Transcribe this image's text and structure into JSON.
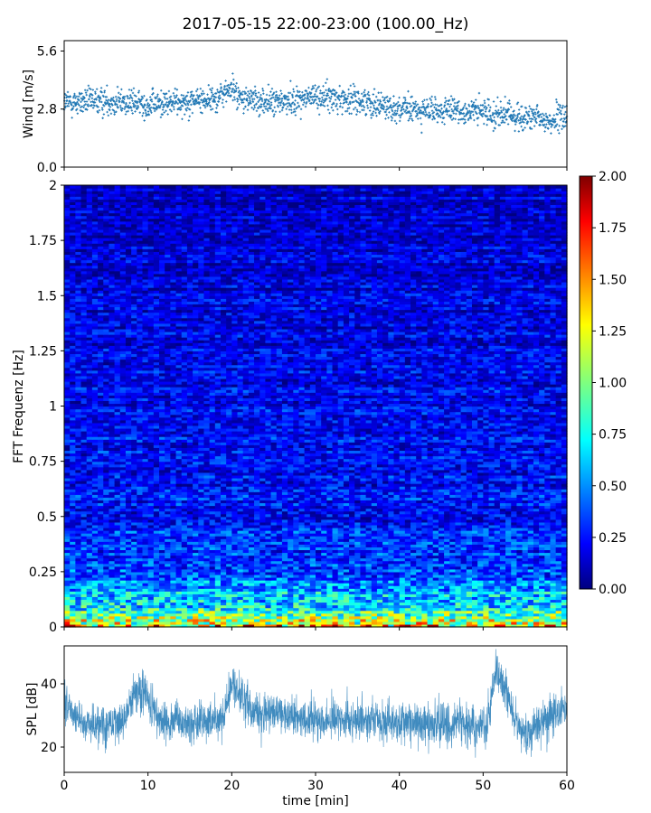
{
  "figure": {
    "title": "2017-05-15 22:00-23:00 (100.00_Hz)"
  },
  "chart_data": [
    {
      "type": "scatter",
      "title": "",
      "xlabel": "",
      "ylabel": "Wind [m/s]",
      "xlim": [
        0,
        60
      ],
      "ylim": [
        0,
        6.1
      ],
      "yticks": [
        0.0,
        2.8,
        5.6
      ],
      "ytick_labels": [
        "0.0",
        "2.8",
        "5.6"
      ],
      "xticks": [
        0,
        10,
        20,
        30,
        40,
        50,
        60
      ],
      "marker": "+",
      "color": "#1f77b4",
      "grid": false,
      "trend": {
        "x": [
          0,
          5,
          8,
          10,
          15,
          18,
          20,
          21,
          25,
          30,
          33,
          37,
          40,
          44,
          48,
          51,
          55,
          58,
          60
        ],
        "y": [
          3.1,
          3.2,
          3.1,
          3.0,
          3.2,
          3.3,
          3.8,
          3.3,
          3.1,
          3.4,
          3.3,
          3.1,
          2.8,
          2.7,
          2.7,
          2.6,
          2.4,
          2.2,
          2.5
        ]
      },
      "spread": 0.45,
      "n_points": 1800
    },
    {
      "type": "heatmap",
      "title": "",
      "xlabel": "",
      "ylabel": "FFT Frequenz [Hz]",
      "xlim": [
        0,
        60
      ],
      "ylim": [
        0,
        2
      ],
      "yticks": [
        0,
        0.25,
        0.5,
        0.75,
        1,
        1.25,
        1.5,
        1.75,
        2
      ],
      "ytick_labels": [
        "0",
        "0.25",
        "0.5",
        "0.75",
        "1",
        "1.25",
        "1.5",
        "1.75",
        "2"
      ],
      "colormap": "jet",
      "colorbar": {
        "range": [
          0,
          2
        ],
        "ticks": [
          0.0,
          0.25,
          0.5,
          0.75,
          1.0,
          1.25,
          1.5,
          1.75,
          2.0
        ],
        "tick_labels": [
          "0.00",
          "0.25",
          "0.50",
          "0.75",
          "1.00",
          "1.25",
          "1.50",
          "1.75",
          "2.00"
        ]
      },
      "profile": {
        "freq": [
          0,
          0.02,
          0.05,
          0.1,
          0.15,
          0.2,
          0.3,
          0.5,
          1.0,
          1.5,
          2.0
        ],
        "mean_value": [
          1.7,
          1.2,
          0.9,
          0.75,
          0.6,
          0.5,
          0.35,
          0.3,
          0.22,
          0.18,
          0.15
        ]
      }
    },
    {
      "type": "line",
      "title": "",
      "xlabel": "time [min]",
      "ylabel": "SPL [dB]",
      "xlim": [
        0,
        60
      ],
      "ylim": [
        12,
        52
      ],
      "yticks": [
        20,
        40
      ],
      "ytick_labels": [
        "20",
        "40"
      ],
      "xticks": [
        0,
        10,
        20,
        30,
        40,
        50,
        60
      ],
      "xtick_labels": [
        "0",
        "10",
        "20",
        "30",
        "40",
        "50",
        "60"
      ],
      "color": "#1f77b4",
      "grid": false,
      "envelope": {
        "x": [
          0,
          2,
          5,
          7,
          8.5,
          9.5,
          11,
          15,
          19,
          20,
          21,
          23,
          30,
          40,
          48,
          50.5,
          51.5,
          52.5,
          54,
          55,
          58,
          60
        ],
        "y": [
          35,
          28,
          27,
          28,
          38,
          38,
          29,
          27,
          29,
          40,
          36,
          31,
          29,
          28,
          27,
          27,
          44,
          40,
          27,
          24,
          30,
          32
        ]
      },
      "spread": 4.5
    }
  ]
}
